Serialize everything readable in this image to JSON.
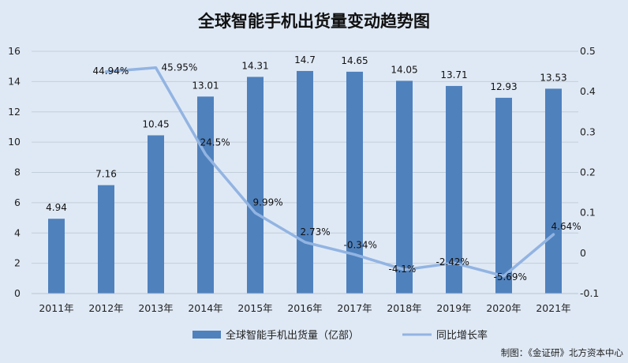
{
  "chart_data": {
    "type": "bar",
    "title": "全球智能手机出货量变动趋势图",
    "categories": [
      "2011年",
      "2012年",
      "2013年",
      "2014年",
      "2015年",
      "2016年",
      "2017年",
      "2018年",
      "2019年",
      "2020年",
      "2021年"
    ],
    "series": [
      {
        "name": "全球智能手机出货量（亿部）",
        "type": "bar",
        "axis": "left",
        "color": "#4f81bd",
        "values": [
          4.94,
          7.16,
          10.45,
          13.01,
          14.31,
          14.7,
          14.65,
          14.05,
          13.71,
          12.93,
          13.53
        ],
        "labels": [
          "4.94",
          "7.16",
          "10.45",
          "13.01",
          "14.31",
          "14.7",
          "14.65",
          "14.05",
          "13.71",
          "12.93",
          "13.53"
        ]
      },
      {
        "name": "同比增长率",
        "type": "line",
        "axis": "right",
        "color": "#92b4e2",
        "values": [
          null,
          0.4494,
          0.4595,
          0.245,
          0.0999,
          0.0273,
          -0.0034,
          -0.041,
          -0.0242,
          -0.0569,
          0.0464
        ],
        "labels": [
          "",
          "44.94%",
          "45.95%",
          "24.5%",
          "9.99%",
          "2.73%",
          "-0.34%",
          "-4.1%",
          "-2.42%",
          "-5.69%",
          "4.64%"
        ]
      }
    ],
    "y_left": {
      "ylim": [
        0,
        16
      ],
      "ticks": [
        "0",
        "2",
        "4",
        "6",
        "8",
        "10",
        "12",
        "14",
        "16"
      ]
    },
    "y_right": {
      "ylim": [
        -0.1,
        0.5
      ],
      "ticks": [
        "-0.1",
        "0",
        "0.1",
        "0.2",
        "0.3",
        "0.4",
        "0.5"
      ]
    },
    "grid": true,
    "legend_position": "bottom",
    "credit": "制图：《金证研》北方资本中心"
  }
}
